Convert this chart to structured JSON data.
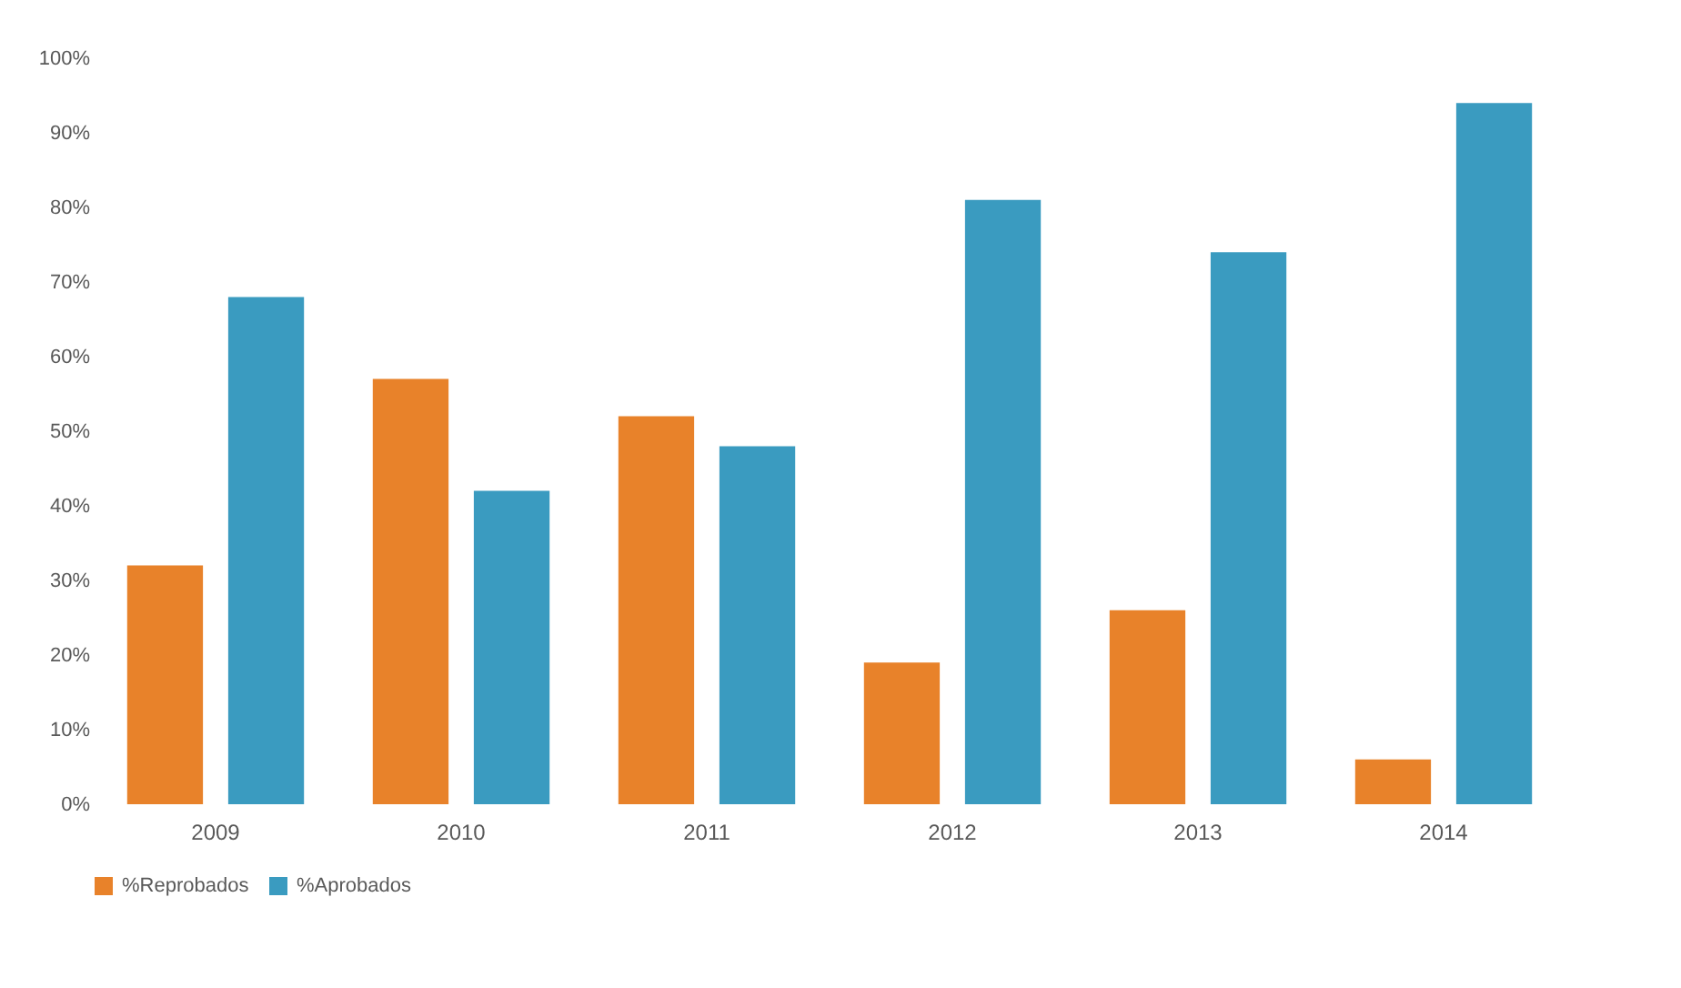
{
  "chart_data": {
    "type": "bar",
    "categories": [
      "2009",
      "2010",
      "2011",
      "2012",
      "2013",
      "2014"
    ],
    "series": [
      {
        "name": "%Reprobados",
        "color": "#e8822a",
        "values": [
          32,
          57,
          52,
          19,
          26,
          6
        ]
      },
      {
        "name": "%Aprobados",
        "color": "#3a9bc0",
        "values": [
          68,
          42,
          48,
          81,
          74,
          94
        ]
      }
    ],
    "ylim": [
      0,
      100
    ],
    "yticks": [
      {
        "value": 0,
        "label": "0%"
      },
      {
        "value": 10,
        "label": "10%"
      },
      {
        "value": 20,
        "label": "20%"
      },
      {
        "value": 30,
        "label": "30%"
      },
      {
        "value": 40,
        "label": "40%"
      },
      {
        "value": 50,
        "label": "50%"
      },
      {
        "value": 60,
        "label": "60%"
      },
      {
        "value": 70,
        "label": "70%"
      },
      {
        "value": 80,
        "label": "80%"
      },
      {
        "value": 90,
        "label": "90%"
      },
      {
        "value": 100,
        "label": "100%"
      }
    ],
    "grid": false,
    "legend": "bottom"
  }
}
